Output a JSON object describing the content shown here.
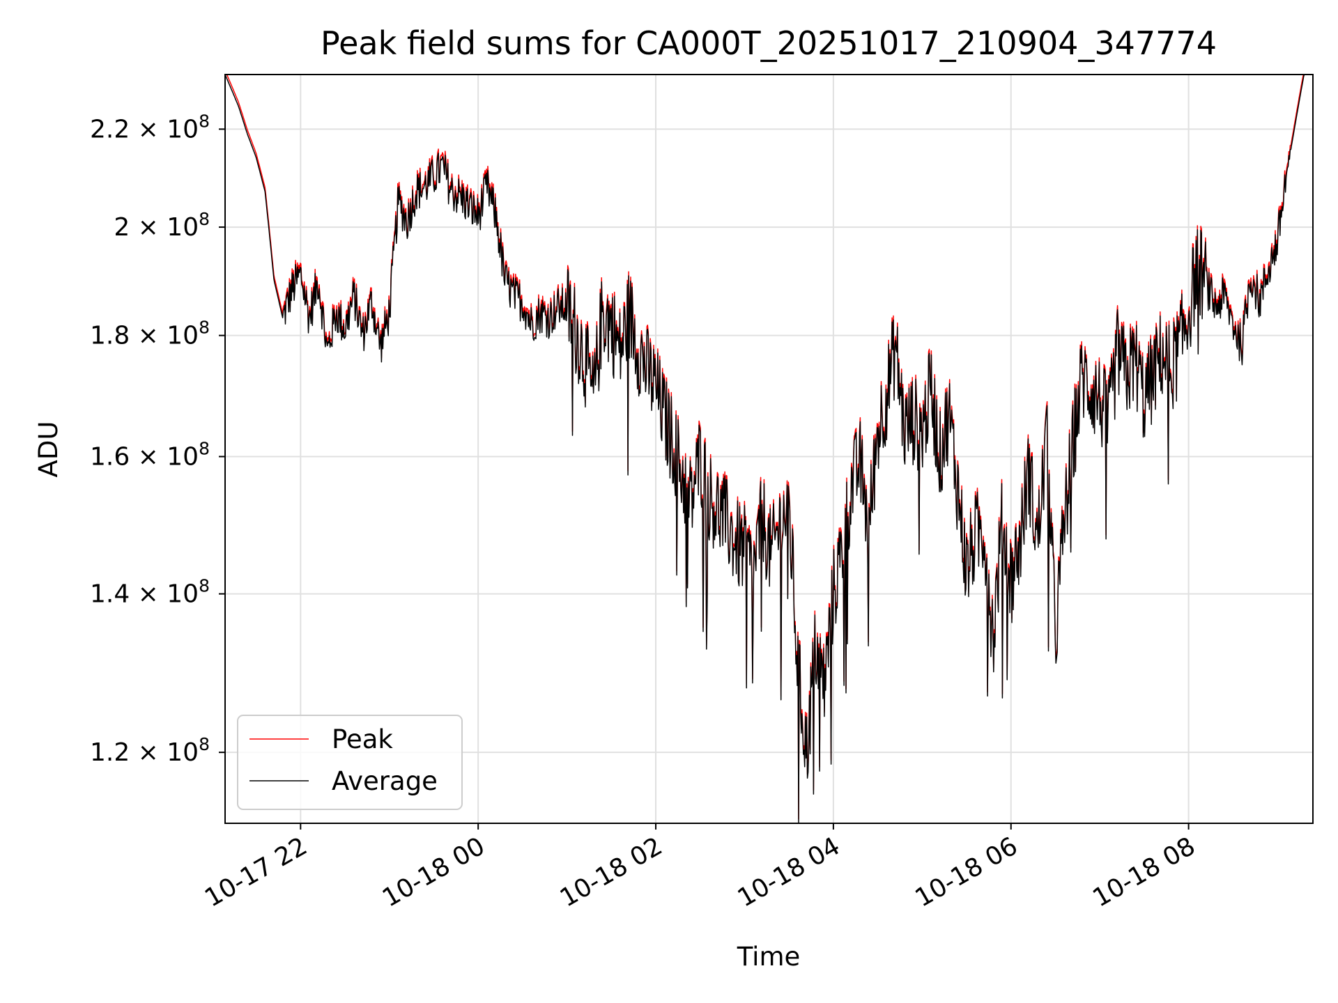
{
  "chart_data": {
    "type": "line",
    "title": "Peak field sums for CA000T_20251017_210904_347774",
    "xlabel": "Time",
    "ylabel": "ADU",
    "y_scale": "log",
    "ylim": [
      112000000,
      232000000
    ],
    "xlim_hours": [
      -2.85,
      9.4
    ],
    "grid": true,
    "legend_position": "lower-left",
    "x_ticks": [
      {
        "hours": -2,
        "label": "10-17 22"
      },
      {
        "hours": 0,
        "label": "10-18 00"
      },
      {
        "hours": 2,
        "label": "10-18 02"
      },
      {
        "hours": 4,
        "label": "10-18 04"
      },
      {
        "hours": 6,
        "label": "10-18 06"
      },
      {
        "hours": 8,
        "label": "10-18 08"
      }
    ],
    "y_ticks": [
      {
        "value": 120000000,
        "mantissa": "1.2",
        "base": "10",
        "exp": "8"
      },
      {
        "value": 140000000,
        "mantissa": "1.4",
        "base": "10",
        "exp": "8"
      },
      {
        "value": 160000000,
        "mantissa": "1.6",
        "base": "10",
        "exp": "8"
      },
      {
        "value": 180000000,
        "mantissa": "1.8",
        "base": "10",
        "exp": "8"
      },
      {
        "value": 200000000,
        "mantissa": "2",
        "base": "10",
        "exp": "8"
      },
      {
        "value": 220000000,
        "mantissa": "2.2",
        "base": "10",
        "exp": "8"
      }
    ],
    "series": [
      {
        "name": "Peak",
        "color": "#ff0000",
        "offset_fraction": 0.004
      },
      {
        "name": "Average",
        "color": "#000000",
        "offset_fraction": 0
      }
    ],
    "series_x_hours": [
      -2.85,
      -2.7,
      -2.6,
      -2.5,
      -2.4,
      -2.3,
      -2.2,
      -2.1,
      -2.0,
      -1.9,
      -1.8,
      -1.7,
      -1.6,
      -1.5,
      -1.4,
      -1.3,
      -1.2,
      -1.1,
      -1.0,
      -0.9,
      -0.8,
      -0.7,
      -0.6,
      -0.5,
      -0.4,
      -0.3,
      -0.2,
      -0.1,
      0.0,
      0.1,
      0.2,
      0.3,
      0.4,
      0.5,
      0.6,
      0.7,
      0.8,
      0.9,
      1.0,
      1.1,
      1.2,
      1.3,
      1.4,
      1.5,
      1.6,
      1.7,
      1.8,
      1.9,
      2.0,
      2.1,
      2.2,
      2.3,
      2.4,
      2.5,
      2.6,
      2.7,
      2.8,
      2.9,
      3.0,
      3.1,
      3.2,
      3.3,
      3.4,
      3.5,
      3.6,
      3.65,
      3.7,
      3.8,
      3.9,
      4.0,
      4.1,
      4.2,
      4.3,
      4.4,
      4.5,
      4.6,
      4.7,
      4.8,
      4.9,
      5.0,
      5.1,
      5.2,
      5.3,
      5.4,
      5.5,
      5.6,
      5.7,
      5.8,
      5.9,
      6.0,
      6.1,
      6.2,
      6.3,
      6.4,
      6.5,
      6.6,
      6.7,
      6.8,
      6.9,
      7.0,
      7.1,
      7.2,
      7.3,
      7.4,
      7.5,
      7.6,
      7.7,
      7.8,
      7.9,
      8.0,
      8.1,
      8.2,
      8.3,
      8.4,
      8.5,
      8.6,
      8.7,
      8.8,
      8.9,
      9.0,
      9.1,
      9.2,
      9.3,
      9.35
    ],
    "series_average_values": [
      232000000,
      225000000,
      219000000,
      214000000,
      207000000,
      190000000,
      183000000,
      188000000,
      191000000,
      183000000,
      190000000,
      177000000,
      184000000,
      181000000,
      187000000,
      180000000,
      186000000,
      178000000,
      184000000,
      205000000,
      201000000,
      207000000,
      208000000,
      210000000,
      212000000,
      207000000,
      206000000,
      204000000,
      202000000,
      208000000,
      202000000,
      190000000,
      187000000,
      186000000,
      182000000,
      184000000,
      183000000,
      185000000,
      185000000,
      181000000,
      176000000,
      169000000,
      184000000,
      182000000,
      177000000,
      184000000,
      178000000,
      174000000,
      171000000,
      166000000,
      162000000,
      157000000,
      153000000,
      160000000,
      154000000,
      152000000,
      150000000,
      147000000,
      146000000,
      143000000,
      151000000,
      145000000,
      150000000,
      152000000,
      130000000,
      125000000,
      120000000,
      133000000,
      128000000,
      140000000,
      146000000,
      155000000,
      159000000,
      149000000,
      164000000,
      170000000,
      178000000,
      164000000,
      166000000,
      164000000,
      171000000,
      160000000,
      167000000,
      155000000,
      143000000,
      148000000,
      149000000,
      134000000,
      150000000,
      142000000,
      147000000,
      158000000,
      147000000,
      163000000,
      134000000,
      150000000,
      162000000,
      173000000,
      171000000,
      169000000,
      165000000,
      177000000,
      173000000,
      176000000,
      169000000,
      173000000,
      177000000,
      174000000,
      178000000,
      184000000,
      193000000,
      189000000,
      185000000,
      187000000,
      182000000,
      178000000,
      191000000,
      186000000,
      192000000,
      197000000,
      210000000,
      221000000,
      232000000,
      232000000
    ]
  },
  "legend": {
    "peak_label": "Peak",
    "average_label": "Average"
  }
}
